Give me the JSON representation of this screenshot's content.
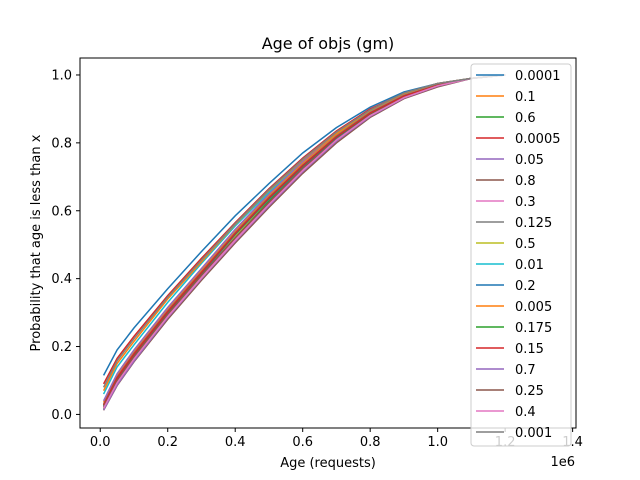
{
  "chart_data": {
    "type": "line",
    "title": "Age of objs (gm)",
    "xlabel": "Age (requests)",
    "ylabel": "Probability that age is less than x",
    "x_multiplier_label": "1e6",
    "xlim": [
      -0.06,
      1.41
    ],
    "ylim": [
      -0.04,
      1.05
    ],
    "x_ticks": [
      0.0,
      0.2,
      0.4,
      0.6,
      0.8,
      1.0,
      1.2,
      1.4
    ],
    "x_tick_labels": [
      "0.0",
      "0.2",
      "0.4",
      "0.6",
      "0.8",
      "1.0",
      "1.2",
      "1.4"
    ],
    "y_ticks": [
      0.0,
      0.2,
      0.4,
      0.6,
      0.8,
      1.0
    ],
    "y_tick_labels": [
      "0.0",
      "0.2",
      "0.4",
      "0.6",
      "0.8",
      "1.0"
    ],
    "grid": false,
    "legend_position": "right",
    "x": [
      0.01,
      0.05,
      0.1,
      0.2,
      0.3,
      0.4,
      0.5,
      0.6,
      0.7,
      0.8,
      0.9,
      1.0,
      1.1,
      1.2
    ],
    "series": [
      {
        "name": "0.0001",
        "color": "#1f77b4",
        "values": [
          0.115,
          0.19,
          0.255,
          0.37,
          0.48,
          0.585,
          0.68,
          0.77,
          0.845,
          0.905,
          0.95,
          0.975,
          0.99,
          1.0
        ]
      },
      {
        "name": "0.1",
        "color": "#ff7f0e",
        "values": [
          0.035,
          0.115,
          0.185,
          0.31,
          0.425,
          0.54,
          0.645,
          0.74,
          0.825,
          0.89,
          0.94,
          0.97,
          0.99,
          1.0
        ]
      },
      {
        "name": "0.6",
        "color": "#2ca02c",
        "values": [
          0.015,
          0.09,
          0.16,
          0.29,
          0.405,
          0.52,
          0.63,
          0.73,
          0.82,
          0.89,
          0.94,
          0.97,
          0.99,
          1.0
        ]
      },
      {
        "name": "0.0005",
        "color": "#d62728",
        "values": [
          0.09,
          0.165,
          0.23,
          0.35,
          0.46,
          0.565,
          0.665,
          0.755,
          0.835,
          0.9,
          0.945,
          0.975,
          0.99,
          1.0
        ]
      },
      {
        "name": "0.05",
        "color": "#9467bd",
        "values": [
          0.04,
          0.12,
          0.19,
          0.315,
          0.43,
          0.545,
          0.65,
          0.745,
          0.83,
          0.895,
          0.945,
          0.975,
          0.99,
          1.0
        ]
      },
      {
        "name": "0.8",
        "color": "#8c564b",
        "values": [
          0.012,
          0.085,
          0.155,
          0.28,
          0.395,
          0.505,
          0.61,
          0.71,
          0.8,
          0.875,
          0.93,
          0.965,
          0.99,
          1.0
        ]
      },
      {
        "name": "0.3",
        "color": "#e377c2",
        "values": [
          0.02,
          0.095,
          0.165,
          0.29,
          0.405,
          0.515,
          0.62,
          0.72,
          0.81,
          0.88,
          0.935,
          0.97,
          0.99,
          1.0
        ]
      },
      {
        "name": "0.125",
        "color": "#7f7f7f",
        "values": [
          0.03,
          0.11,
          0.18,
          0.305,
          0.42,
          0.535,
          0.64,
          0.735,
          0.82,
          0.89,
          0.94,
          0.97,
          0.99,
          1.0
        ]
      },
      {
        "name": "0.5",
        "color": "#bcbd22",
        "values": [
          0.018,
          0.095,
          0.165,
          0.295,
          0.41,
          0.525,
          0.635,
          0.73,
          0.815,
          0.885,
          0.935,
          0.97,
          0.99,
          1.0
        ]
      },
      {
        "name": "0.01",
        "color": "#17becf",
        "values": [
          0.06,
          0.14,
          0.205,
          0.33,
          0.445,
          0.555,
          0.655,
          0.75,
          0.83,
          0.895,
          0.945,
          0.975,
          0.99,
          1.0
        ]
      },
      {
        "name": "0.2",
        "color": "#1f77b4",
        "values": [
          0.025,
          0.105,
          0.175,
          0.3,
          0.415,
          0.53,
          0.635,
          0.73,
          0.815,
          0.885,
          0.935,
          0.97,
          0.99,
          1.0
        ]
      },
      {
        "name": "0.005",
        "color": "#ff7f0e",
        "values": [
          0.07,
          0.15,
          0.215,
          0.34,
          0.45,
          0.56,
          0.66,
          0.75,
          0.83,
          0.895,
          0.945,
          0.975,
          0.99,
          1.0
        ]
      },
      {
        "name": "0.175",
        "color": "#2ca02c",
        "values": [
          0.027,
          0.107,
          0.177,
          0.302,
          0.417,
          0.532,
          0.637,
          0.732,
          0.817,
          0.887,
          0.937,
          0.97,
          0.99,
          1.0
        ]
      },
      {
        "name": "0.15",
        "color": "#d62728",
        "values": [
          0.028,
          0.108,
          0.178,
          0.303,
          0.418,
          0.533,
          0.638,
          0.733,
          0.818,
          0.888,
          0.938,
          0.97,
          0.99,
          1.0
        ]
      },
      {
        "name": "0.7",
        "color": "#9467bd",
        "values": [
          0.013,
          0.087,
          0.157,
          0.285,
          0.4,
          0.51,
          0.615,
          0.715,
          0.805,
          0.878,
          0.932,
          0.967,
          0.99,
          1.0
        ]
      },
      {
        "name": "0.25",
        "color": "#8c564b",
        "values": [
          0.022,
          0.1,
          0.17,
          0.295,
          0.41,
          0.52,
          0.625,
          0.725,
          0.81,
          0.882,
          0.934,
          0.968,
          0.99,
          1.0
        ]
      },
      {
        "name": "0.4",
        "color": "#e377c2",
        "values": [
          0.018,
          0.093,
          0.163,
          0.288,
          0.402,
          0.512,
          0.618,
          0.718,
          0.808,
          0.88,
          0.933,
          0.968,
          0.99,
          1.0
        ]
      },
      {
        "name": "0.001",
        "color": "#7f7f7f",
        "values": [
          0.08,
          0.158,
          0.223,
          0.345,
          0.455,
          0.562,
          0.662,
          0.752,
          0.832,
          0.897,
          0.947,
          0.975,
          0.99,
          1.0
        ]
      }
    ]
  }
}
